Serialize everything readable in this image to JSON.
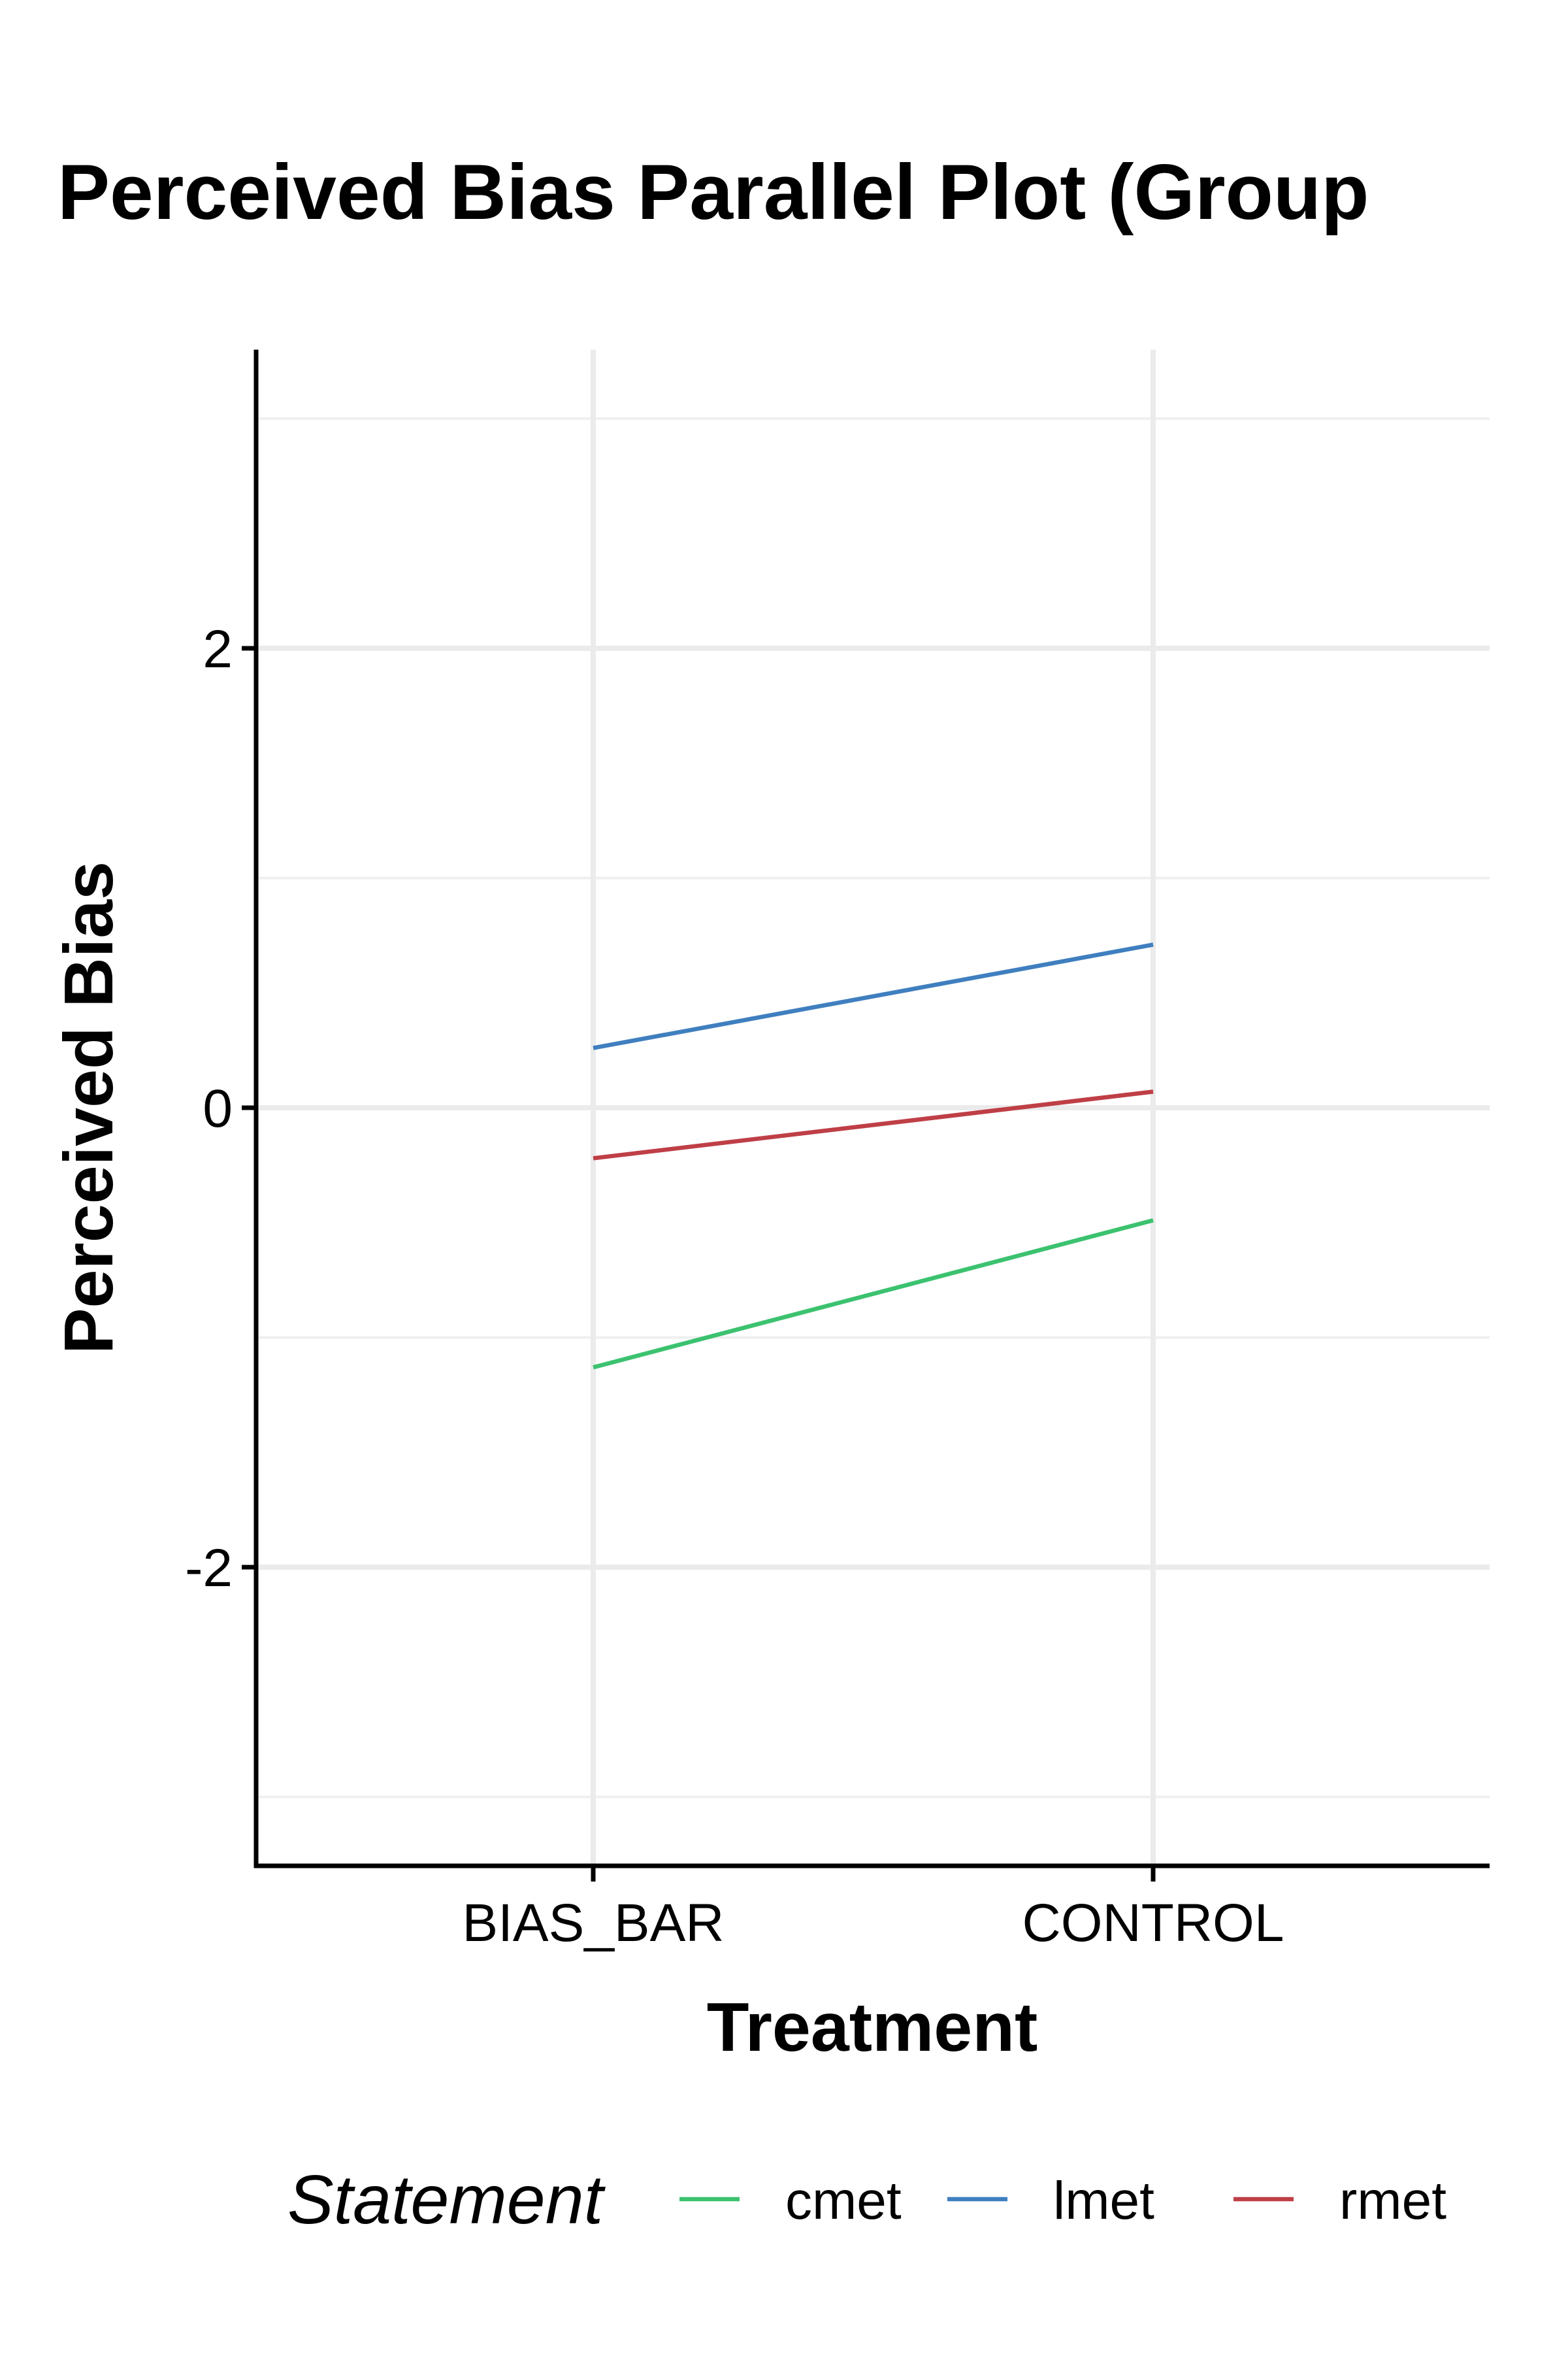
{
  "chart_data": {
    "type": "line",
    "title": "Perceived Bias Parallel Plot (Group",
    "xlabel": "Treatment",
    "ylabel": "Perceived Bias",
    "categories": [
      "BIAS_BAR",
      "CONTROL"
    ],
    "ylim": [
      -3.3,
      3.3
    ],
    "yticks": [
      -2,
      0,
      2
    ],
    "ytick_labels": [
      "-2",
      "0",
      "2"
    ],
    "grid": true,
    "legend_title": "Statement",
    "legend_position": "bottom",
    "series": [
      {
        "name": "cmet",
        "color": "#3CC26F",
        "values": [
          -1.13,
          -0.49
        ]
      },
      {
        "name": "lmet",
        "color": "#3F7FBF",
        "values": [
          0.26,
          0.71
        ]
      },
      {
        "name": "rmet",
        "color": "#BF3F47",
        "values": [
          -0.22,
          0.07
        ]
      }
    ]
  }
}
